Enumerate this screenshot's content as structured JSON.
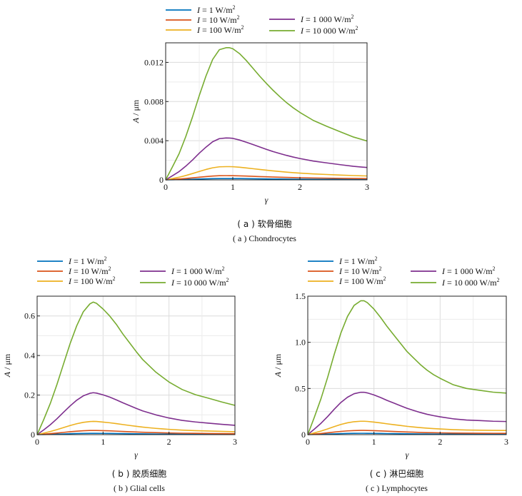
{
  "legend_entries": [
    {
      "prefix": "I",
      "value": "1",
      "unit": "W/m",
      "exp": "2"
    },
    {
      "prefix": "I",
      "value": "10",
      "unit": "W/m",
      "exp": "2"
    },
    {
      "prefix": "I",
      "value": "100",
      "unit": "W/m",
      "exp": "2"
    },
    {
      "prefix": "I",
      "value": "1 000",
      "unit": "W/m",
      "exp": "2"
    },
    {
      "prefix": "I",
      "value": "10 000",
      "unit": "W/m",
      "exp": "2"
    }
  ],
  "series_colors": [
    "#0072bd",
    "#d95319",
    "#edb120",
    "#7e2f8e",
    "#77ac30"
  ],
  "captions": {
    "a_zh": "( a )  软骨细胞",
    "a_en": "( a )  Chondrocytes",
    "b_zh": "( b )  胶质细胞",
    "b_en": "( b )  Glial cells",
    "c_zh": "( c )  淋巴细胞",
    "c_en": "( c )  Lymphocytes"
  },
  "chart_data": [
    {
      "type": "line",
      "xlabel": "γ",
      "ylabel": "A / μm",
      "xlim": [
        0,
        3
      ],
      "ylim": [
        0,
        0.014
      ],
      "xticks": [
        0,
        1,
        2,
        3
      ],
      "yticks": [
        0,
        0.004,
        0.008,
        0.012
      ],
      "ytick_labels": [
        "0",
        "0.004",
        "0.008",
        "0.012"
      ],
      "grid": true,
      "legend_position": "top",
      "x": [
        0,
        0.1,
        0.2,
        0.3,
        0.4,
        0.5,
        0.6,
        0.7,
        0.8,
        0.9,
        0.95,
        1.0,
        1.1,
        1.2,
        1.3,
        1.4,
        1.5,
        1.6,
        1.7,
        1.8,
        1.9,
        2.0,
        2.2,
        2.4,
        2.6,
        2.8,
        3.0
      ],
      "series": [
        {
          "name": "I = 1 W/m2",
          "values": [
            0,
            1.31e-05,
            2.67e-05,
            4.43e-05,
            6.43e-05,
            8.6e-05,
            0.000106,
            0.000123,
            0.000133,
            0.000135,
            0.000135,
            0.000134,
            0.000129,
            0.000122,
            0.000114,
            0.000106,
            9.86e-05,
            9.15e-05,
            8.5e-05,
            7.89e-05,
            7.36e-05,
            6.89e-05,
            6.07e-05,
            5.47e-05,
            4.91e-05,
            4.37e-05,
            3.97e-05
          ]
        },
        {
          "name": "I = 10 W/m2",
          "values": [
            0,
            4.13e-05,
            8.44e-05,
            0.00014,
            0.000203,
            0.000272,
            0.000334,
            0.000389,
            0.000421,
            0.000428,
            0.000427,
            0.000424,
            0.000407,
            0.000385,
            0.000361,
            0.000336,
            0.000312,
            0.000289,
            0.000269,
            0.00025,
            0.000233,
            0.000218,
            0.000192,
            0.000173,
            0.000155,
            0.000138,
            0.000126
          ]
        },
        {
          "name": "I = 100 W/m2",
          "values": [
            0,
            0.000131,
            0.000267,
            0.000443,
            0.000643,
            0.00086,
            0.00106,
            0.00123,
            0.00133,
            0.00135,
            0.00135,
            0.00134,
            0.00129,
            0.00122,
            0.00114,
            0.00106,
            0.000986,
            0.000915,
            0.00085,
            0.000789,
            0.000736,
            0.000689,
            0.000607,
            0.000547,
            0.000491,
            0.000437,
            0.000397
          ]
        },
        {
          "name": "I = 1 000 W/m2",
          "values": [
            0,
            0.000413,
            0.000844,
            0.0014,
            0.00203,
            0.00272,
            0.00334,
            0.00389,
            0.00421,
            0.00428,
            0.00427,
            0.00424,
            0.00407,
            0.00385,
            0.00361,
            0.00336,
            0.00312,
            0.00289,
            0.00269,
            0.0025,
            0.00233,
            0.00218,
            0.00192,
            0.00173,
            0.00155,
            0.00138,
            0.00126
          ]
        },
        {
          "name": "I = 10 000 W/m2",
          "values": [
            0,
            0.00131,
            0.00267,
            0.00443,
            0.00643,
            0.0086,
            0.0106,
            0.0123,
            0.0133,
            0.0135,
            0.0135,
            0.0134,
            0.0129,
            0.0122,
            0.0114,
            0.0106,
            0.00986,
            0.00915,
            0.0085,
            0.00789,
            0.00736,
            0.00689,
            0.00607,
            0.00547,
            0.00491,
            0.00437,
            0.00397
          ]
        }
      ]
    },
    {
      "type": "line",
      "xlabel": "γ",
      "ylabel": "A / μm",
      "xlim": [
        0,
        3
      ],
      "ylim": [
        0,
        0.7
      ],
      "xticks": [
        0,
        1,
        2,
        3
      ],
      "yticks": [
        0,
        0.2,
        0.4,
        0.6
      ],
      "ytick_labels": [
        "0",
        "0.2",
        "0.4",
        "0.6"
      ],
      "grid": true,
      "legend_position": "top",
      "x": [
        0,
        0.1,
        0.2,
        0.3,
        0.4,
        0.5,
        0.6,
        0.7,
        0.8,
        0.85,
        0.9,
        1.0,
        1.1,
        1.2,
        1.3,
        1.4,
        1.5,
        1.6,
        1.7,
        1.8,
        1.9,
        2.0,
        2.2,
        2.4,
        2.6,
        2.8,
        3.0
      ],
      "series": [
        {
          "name": "I = 1 W/m2",
          "values": [
            0,
            0.00076,
            0.00158,
            0.00253,
            0.00357,
            0.0046,
            0.0055,
            0.00621,
            0.00661,
            0.0067,
            0.00664,
            0.00635,
            0.006,
            0.00558,
            0.00509,
            0.00465,
            0.00421,
            0.0038,
            0.00348,
            0.00316,
            0.00291,
            0.00266,
            0.00228,
            0.00202,
            0.00184,
            0.00165,
            0.00148
          ]
        },
        {
          "name": "I = 10 W/m2",
          "values": [
            0,
            0.0024,
            0.005,
            0.008,
            0.0113,
            0.0145,
            0.0174,
            0.0196,
            0.0209,
            0.0212,
            0.021,
            0.0201,
            0.019,
            0.0176,
            0.0161,
            0.0147,
            0.0133,
            0.012,
            0.011,
            0.01,
            0.0092,
            0.0084,
            0.0072,
            0.0064,
            0.0058,
            0.0052,
            0.0047
          ]
        },
        {
          "name": "I = 100 W/m2",
          "values": [
            0,
            0.0076,
            0.0158,
            0.0253,
            0.0357,
            0.046,
            0.055,
            0.0621,
            0.0661,
            0.067,
            0.0664,
            0.0635,
            0.06,
            0.0558,
            0.0509,
            0.0465,
            0.0421,
            0.038,
            0.0348,
            0.0316,
            0.0291,
            0.0266,
            0.0228,
            0.0202,
            0.0184,
            0.0165,
            0.0148
          ]
        },
        {
          "name": "I = 1 000 W/m2",
          "values": [
            0,
            0.024,
            0.05,
            0.08,
            0.113,
            0.145,
            0.174,
            0.196,
            0.209,
            0.212,
            0.21,
            0.201,
            0.19,
            0.176,
            0.161,
            0.147,
            0.133,
            0.12,
            0.11,
            0.1,
            0.092,
            0.084,
            0.072,
            0.064,
            0.058,
            0.052,
            0.047
          ]
        },
        {
          "name": "I = 10 000 W/m2",
          "values": [
            0,
            0.076,
            0.158,
            0.253,
            0.357,
            0.46,
            0.55,
            0.621,
            0.661,
            0.67,
            0.664,
            0.635,
            0.6,
            0.558,
            0.509,
            0.465,
            0.421,
            0.38,
            0.348,
            0.316,
            0.291,
            0.266,
            0.228,
            0.202,
            0.184,
            0.165,
            0.148
          ]
        }
      ]
    },
    {
      "type": "line",
      "xlabel": "γ",
      "ylabel": "A / μm",
      "xlim": [
        0,
        3
      ],
      "ylim": [
        0,
        1.5
      ],
      "xticks": [
        0,
        1,
        2,
        3
      ],
      "yticks": [
        0,
        0.5,
        1.0,
        1.5
      ],
      "ytick_labels": [
        "0",
        "0.5",
        "1.0",
        "1.5"
      ],
      "grid": true,
      "legend_position": "top",
      "x": [
        0,
        0.1,
        0.2,
        0.3,
        0.4,
        0.5,
        0.6,
        0.7,
        0.8,
        0.85,
        0.9,
        1.0,
        1.1,
        1.2,
        1.3,
        1.4,
        1.5,
        1.6,
        1.7,
        1.8,
        1.9,
        2.0,
        2.2,
        2.4,
        2.6,
        2.8,
        3.0
      ],
      "series": [
        {
          "name": "I = 1 W/m2",
          "values": [
            0,
            0.0019,
            0.0039,
            0.0062,
            0.0087,
            0.011,
            0.0128,
            0.014,
            0.0145,
            0.0145,
            0.0143,
            0.0136,
            0.0127,
            0.0117,
            0.0108,
            0.0099,
            0.009,
            0.0083,
            0.0076,
            0.007,
            0.0065,
            0.0061,
            0.0054,
            0.005,
            0.0048,
            0.0046,
            0.0045
          ]
        },
        {
          "name": "I = 10 W/m2",
          "values": [
            0,
            0.006,
            0.0123,
            0.0196,
            0.0275,
            0.0348,
            0.0405,
            0.0443,
            0.0459,
            0.0459,
            0.0452,
            0.043,
            0.0402,
            0.037,
            0.0342,
            0.0313,
            0.0285,
            0.0262,
            0.024,
            0.0221,
            0.0206,
            0.0193,
            0.0171,
            0.0158,
            0.0152,
            0.0145,
            0.0142
          ]
        },
        {
          "name": "I = 100 W/m2",
          "values": [
            0,
            0.019,
            0.039,
            0.062,
            0.087,
            0.11,
            0.128,
            0.14,
            0.145,
            0.145,
            0.143,
            0.136,
            0.127,
            0.117,
            0.108,
            0.099,
            0.09,
            0.083,
            0.076,
            0.07,
            0.065,
            0.061,
            0.054,
            0.05,
            0.048,
            0.046,
            0.045
          ]
        },
        {
          "name": "I = 1 000 W/m2",
          "values": [
            0,
            0.06,
            0.123,
            0.196,
            0.275,
            0.348,
            0.405,
            0.443,
            0.459,
            0.459,
            0.452,
            0.43,
            0.402,
            0.37,
            0.342,
            0.313,
            0.285,
            0.262,
            0.24,
            0.221,
            0.206,
            0.193,
            0.171,
            0.158,
            0.152,
            0.145,
            0.142
          ]
        },
        {
          "name": "I = 10 000 W/m2",
          "values": [
            0,
            0.19,
            0.39,
            0.62,
            0.87,
            1.1,
            1.28,
            1.4,
            1.45,
            1.45,
            1.43,
            1.36,
            1.27,
            1.17,
            1.08,
            0.99,
            0.9,
            0.83,
            0.76,
            0.7,
            0.65,
            0.61,
            0.54,
            0.5,
            0.48,
            0.46,
            0.45
          ]
        }
      ]
    }
  ]
}
